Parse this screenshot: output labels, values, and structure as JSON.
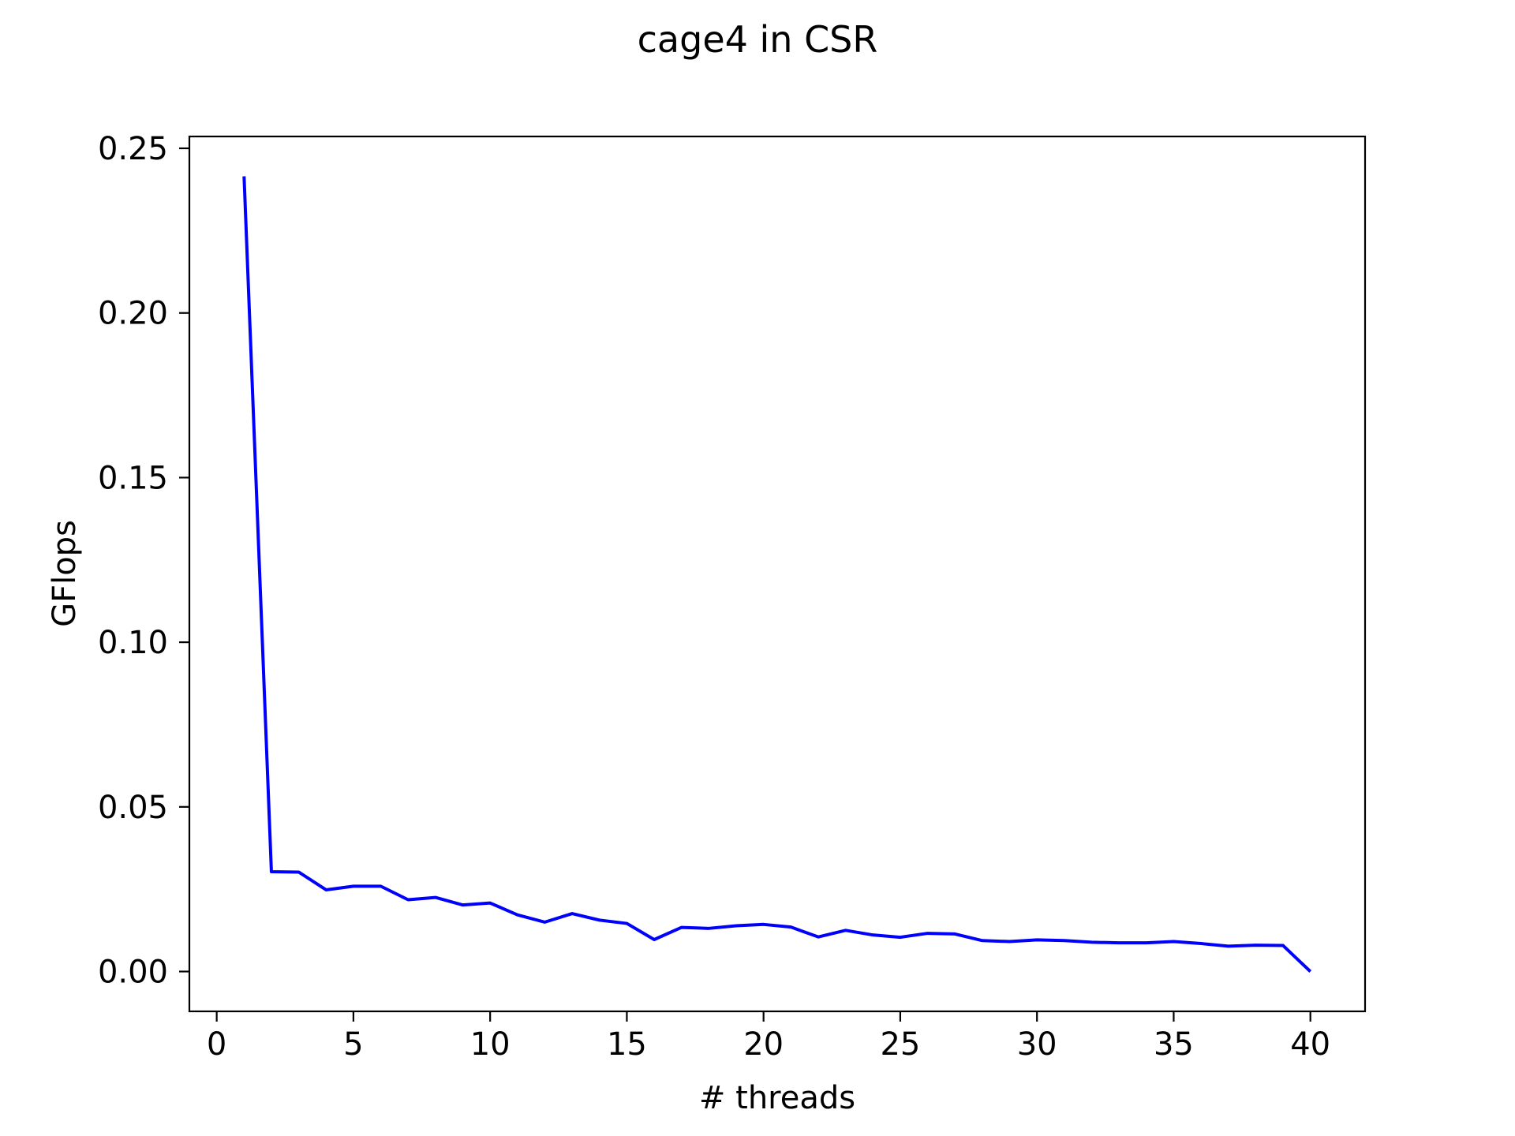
{
  "chart_data": {
    "type": "line",
    "title": "cage4 in CSR",
    "xlabel": "# threads",
    "ylabel": "GFlops",
    "xlim": [
      -1,
      42
    ],
    "ylim": [
      -0.0121,
      0.2536
    ],
    "xticks": [
      0,
      5,
      10,
      15,
      20,
      25,
      30,
      35,
      40
    ],
    "xtick_labels": [
      "0",
      "5",
      "10",
      "15",
      "20",
      "25",
      "30",
      "35",
      "40"
    ],
    "yticks": [
      0.0,
      0.05,
      0.1,
      0.15,
      0.2,
      0.25
    ],
    "ytick_labels": [
      "0.00",
      "0.05",
      "0.10",
      "0.15",
      "0.20",
      "0.25"
    ],
    "grid": false,
    "series": [
      {
        "color": "#0000ff",
        "x": [
          1,
          2,
          3,
          4,
          5,
          6,
          7,
          8,
          9,
          10,
          11,
          12,
          13,
          14,
          15,
          16,
          17,
          18,
          19,
          20,
          21,
          22,
          23,
          24,
          25,
          26,
          27,
          28,
          29,
          30,
          31,
          32,
          33,
          34,
          35,
          36,
          37,
          38,
          39,
          40
        ],
        "values": [
          0.2415,
          0.0303,
          0.0302,
          0.0248,
          0.0259,
          0.0259,
          0.0218,
          0.0225,
          0.0202,
          0.0208,
          0.0172,
          0.015,
          0.0176,
          0.0156,
          0.0146,
          0.0097,
          0.0134,
          0.0131,
          0.0139,
          0.0143,
          0.0135,
          0.0105,
          0.0125,
          0.0111,
          0.0104,
          0.0116,
          0.0114,
          0.0094,
          0.0091,
          0.0096,
          0.0094,
          0.0089,
          0.0087,
          0.0087,
          0.0091,
          0.0085,
          0.0077,
          0.008,
          0.0079,
          0.0
        ]
      }
    ]
  }
}
